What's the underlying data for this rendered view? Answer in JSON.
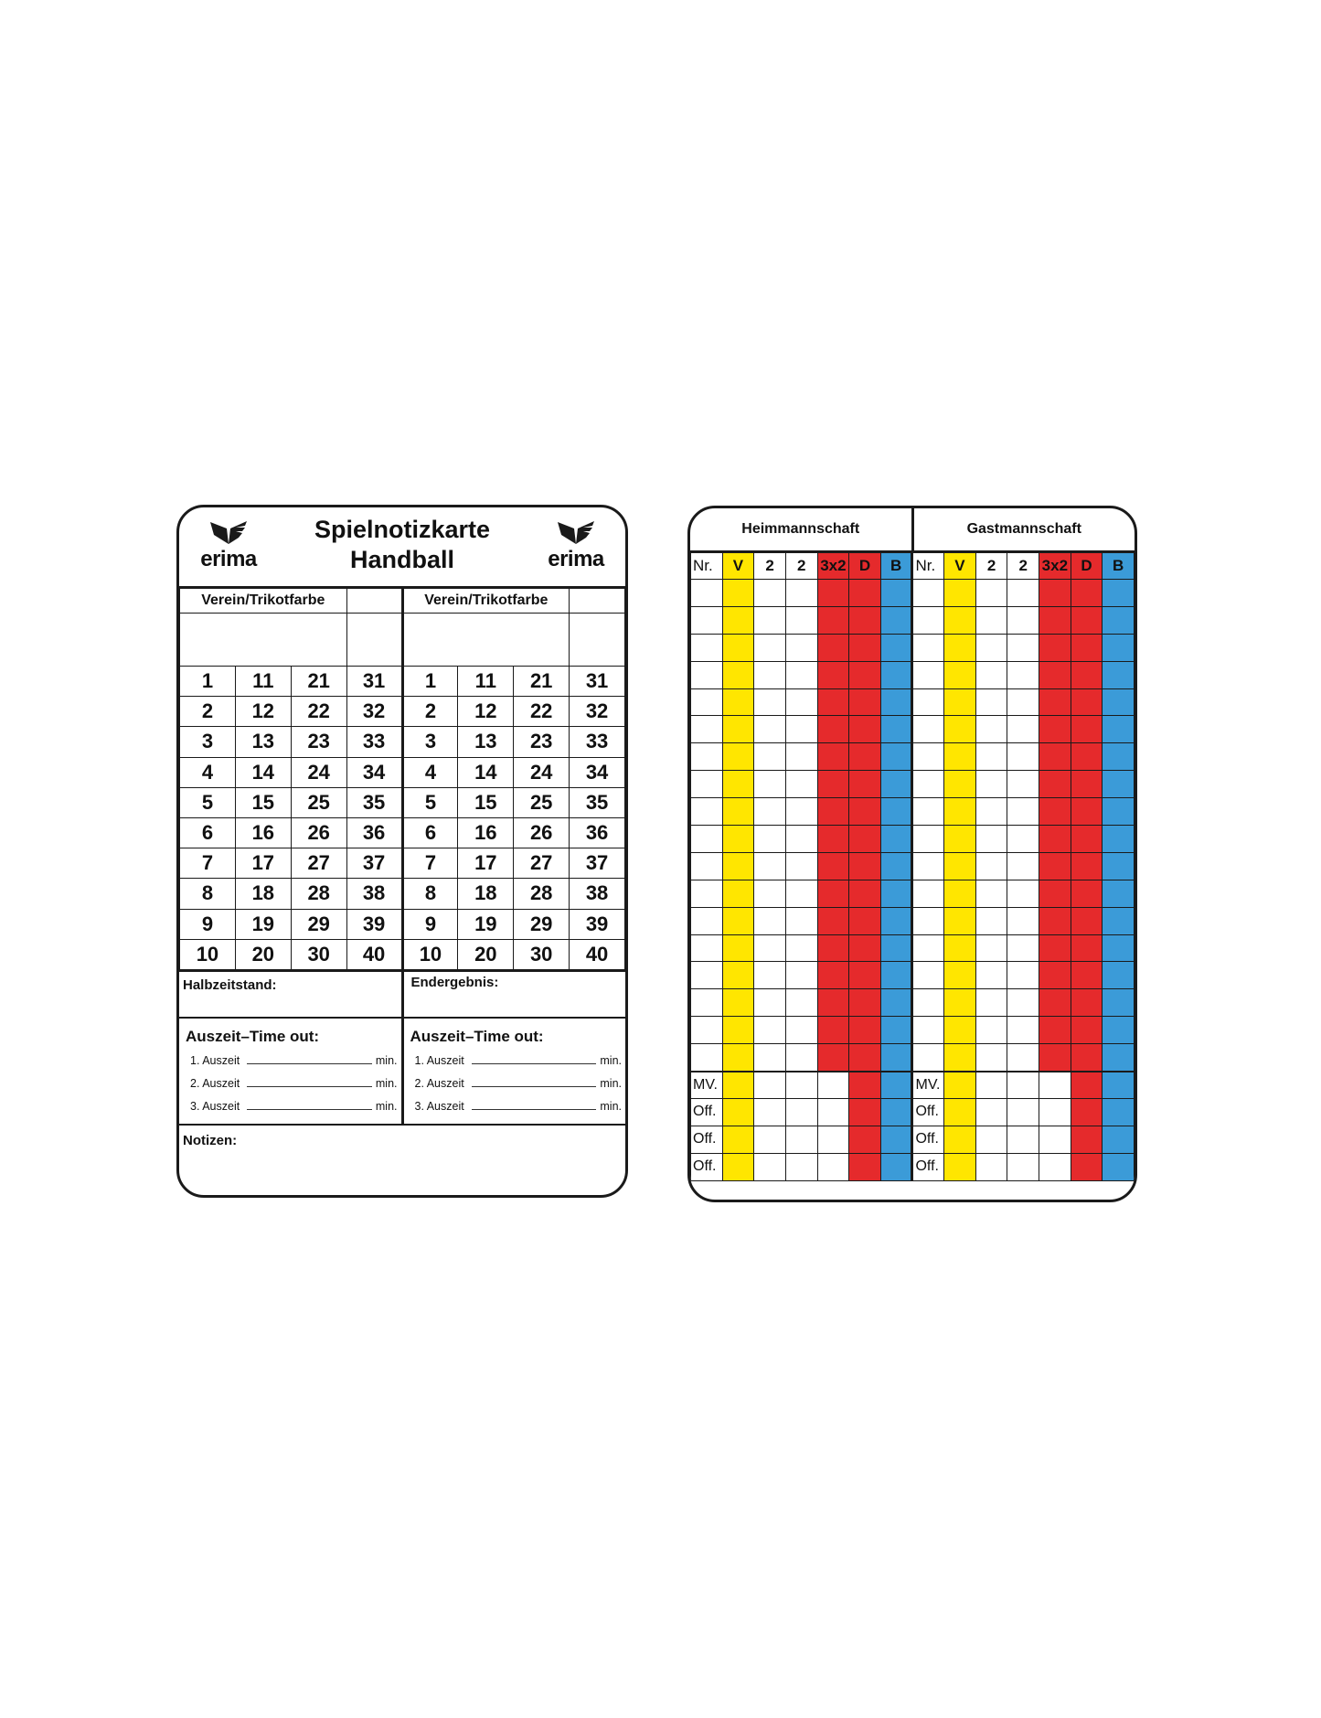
{
  "colors": {
    "yellow": "#ffe600",
    "red": "#e52a2c",
    "blue": "#3b9bd8"
  },
  "left_card": {
    "logo_text": "erima",
    "title_line1": "Spielnotizkarte",
    "title_line2": "Handball",
    "verein_label": "Verein/Trikotfarbe",
    "numbers": [
      [
        1,
        11,
        21,
        31
      ],
      [
        2,
        12,
        22,
        32
      ],
      [
        3,
        13,
        23,
        33
      ],
      [
        4,
        14,
        24,
        34
      ],
      [
        5,
        15,
        25,
        35
      ],
      [
        6,
        16,
        26,
        36
      ],
      [
        7,
        17,
        27,
        37
      ],
      [
        8,
        18,
        28,
        38
      ],
      [
        9,
        19,
        29,
        39
      ],
      [
        10,
        20,
        30,
        40
      ]
    ],
    "halftime_label": "Halbzeitstand:",
    "final_label": "Endergebnis:",
    "timeout_title": "Auszeit–Time out:",
    "timeouts": [
      "1. Auszeit",
      "2. Auszeit",
      "3. Auszeit"
    ],
    "min_label": "min.",
    "notes_label": "Notizen:"
  },
  "right_card": {
    "home_label": "Heimmannschaft",
    "away_label": "Gastmannschaft",
    "columns": [
      "Nr.",
      "V",
      "2",
      "2",
      "3x2",
      "D",
      "B"
    ],
    "player_rows": 18,
    "official_rows": [
      "MV.",
      "Off.",
      "Off.",
      "Off."
    ]
  }
}
